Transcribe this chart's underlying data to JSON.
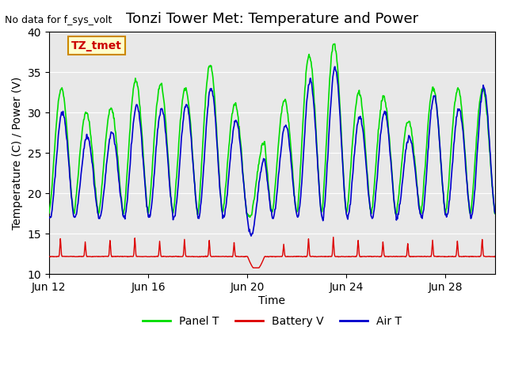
{
  "title": "Tonzi Tower Met: Temperature and Power",
  "top_left_text": "No data for f_sys_volt",
  "annotation_label": "TZ_tmet",
  "ylabel": "Temperature (C) / Power (V)",
  "xlabel": "Time",
  "xlim_days": [
    0,
    18
  ],
  "ylim": [
    10,
    40
  ],
  "yticks": [
    10,
    15,
    20,
    25,
    30,
    35,
    40
  ],
  "xtick_labels": [
    "Jun 12",
    "Jun 16",
    "Jun 20",
    "Jun 24",
    "Jun 28"
  ],
  "xtick_positions": [
    0,
    4,
    8,
    12,
    16
  ],
  "bg_color": "#e8e8e8",
  "plot_bg_color": "#e8e8e8",
  "panel_t_color": "#00dd00",
  "battery_v_color": "#dd0000",
  "air_t_color": "#0000cc",
  "legend_labels": [
    "Panel T",
    "Battery V",
    "Air T"
  ],
  "legend_colors": [
    "#00dd00",
    "#dd0000",
    "#0000cc"
  ],
  "title_fontsize": 13,
  "axis_fontsize": 10,
  "tick_fontsize": 10
}
